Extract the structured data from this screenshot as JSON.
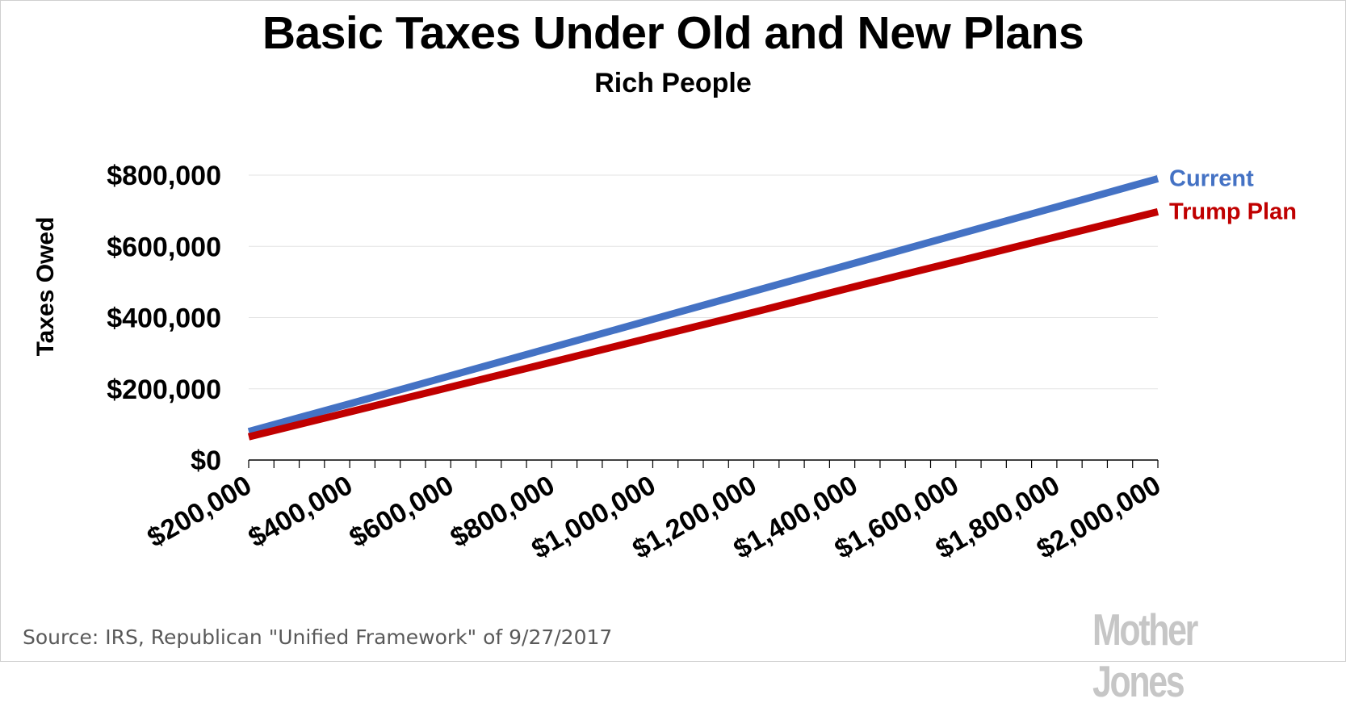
{
  "chart_data": {
    "type": "line",
    "title": "Basic Taxes Under Old and New Plans",
    "subtitle": "Rich People",
    "ylabel": "Taxes Owed",
    "xlabel": "",
    "xlim": [
      200000,
      2000000
    ],
    "ylim": [
      0,
      800000
    ],
    "x_tick_labels": [
      "$200,000",
      "$400,000",
      "$600,000",
      "$800,000",
      "$1,000,000",
      "$1,200,000",
      "$1,400,000",
      "$1,600,000",
      "$1,800,000",
      "$2,000,000"
    ],
    "x_ticks": [
      200000,
      400000,
      600000,
      800000,
      1000000,
      1200000,
      1400000,
      1600000,
      1800000,
      2000000
    ],
    "y_tick_labels": [
      "$0",
      "$200,000",
      "$400,000",
      "$600,000",
      "$800,000"
    ],
    "y_ticks": [
      0,
      200000,
      400000,
      600000,
      800000
    ],
    "grid": true,
    "legend": "right-end labels",
    "x": [
      200000,
      400000,
      600000,
      800000,
      1000000,
      1200000,
      1400000,
      1600000,
      1800000,
      2000000
    ],
    "series": [
      {
        "name": "Current",
        "color": "#4472c4",
        "values": [
          80000,
          158000,
          237000,
          316000,
          395000,
          474000,
          553000,
          632000,
          711000,
          790000
        ]
      },
      {
        "name": "Trump Plan",
        "color": "#c00000",
        "values": [
          65000,
          135000,
          205000,
          275000,
          345000,
          415000,
          487000,
          557000,
          627000,
          697000
        ]
      }
    ]
  },
  "source": "Source: IRS, Republican \"Unified Framework\" of 9/27/2017",
  "logo": "Mother Jones"
}
